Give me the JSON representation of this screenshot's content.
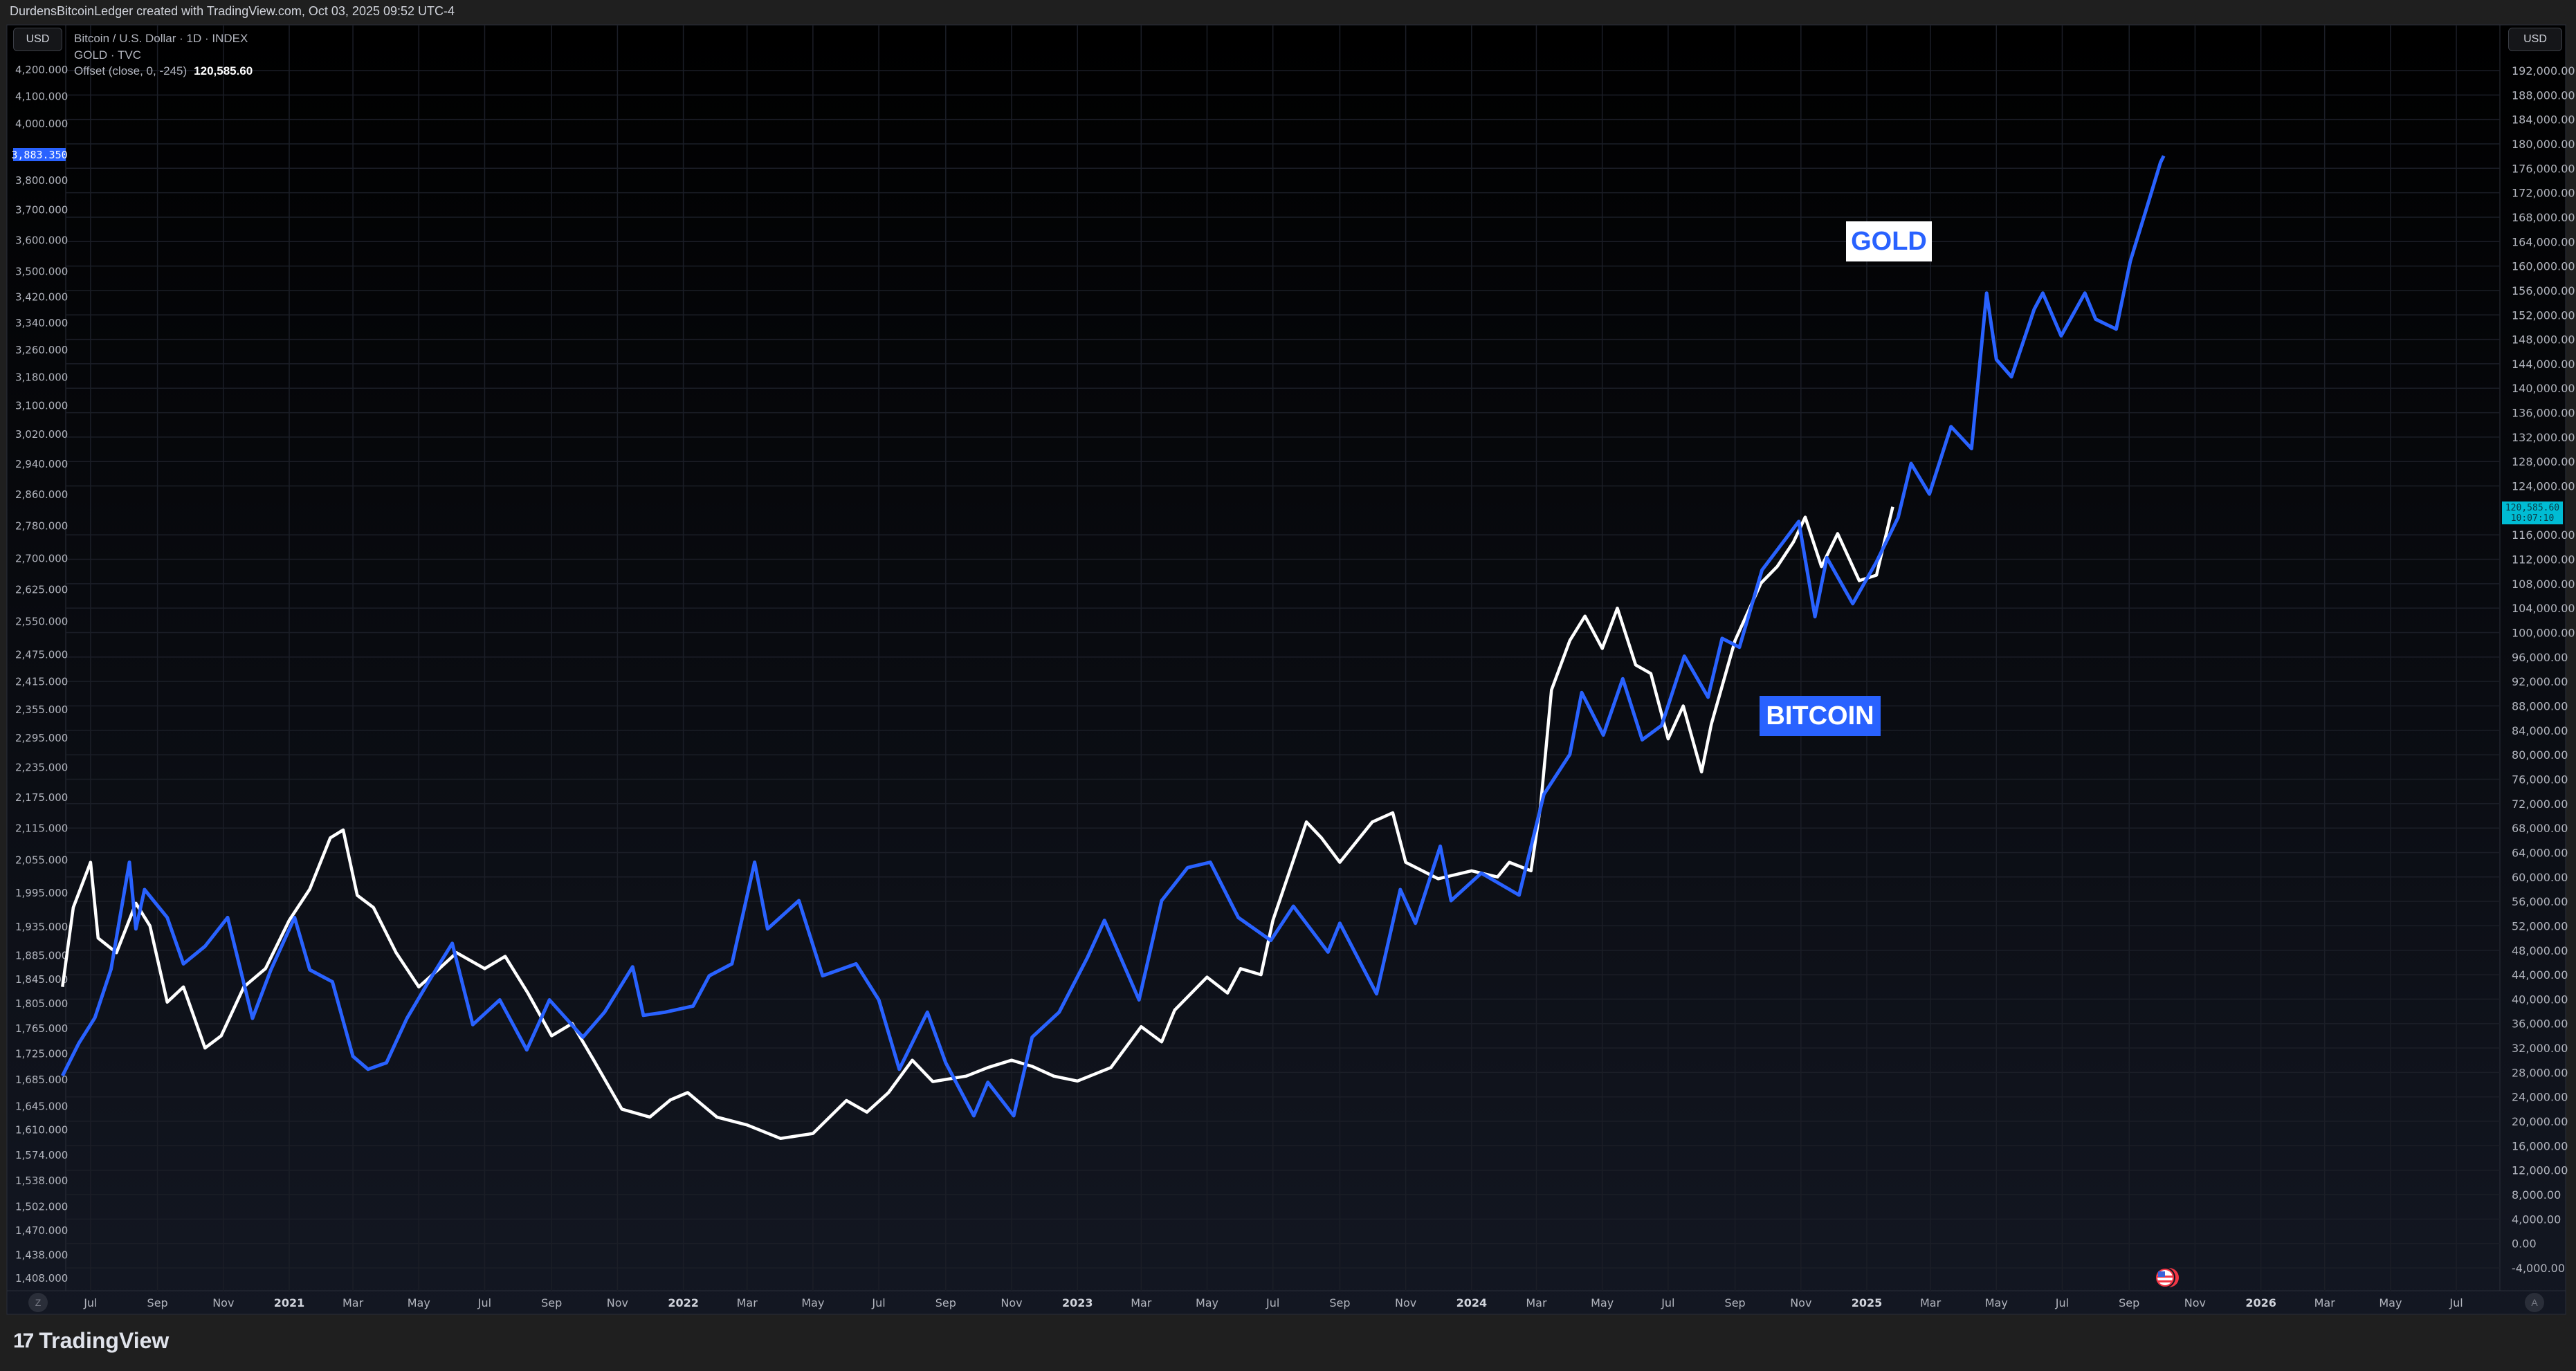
{
  "header": {
    "attribution": "DurdensBitcoinLedger created with TradingView.com, Oct 03, 2025 09:52 UTC-4"
  },
  "legend": {
    "line1": "Bitcoin / U.S. Dollar · 1D · INDEX",
    "line2": "GOLD · TVC",
    "line3_label": "Offset (close, 0, -245)",
    "line3_value": "120,585.60"
  },
  "axes": {
    "left_currency": "USD",
    "right_currency": "USD",
    "left_price_tag": "3,883.350",
    "right_price_tag": "120,585.60",
    "right_countdown": "10:07:10",
    "reset_button": "Z",
    "auto_button": "A"
  },
  "annotations": {
    "gold": "GOLD",
    "bitcoin": "BITCOIN"
  },
  "footer": {
    "brand": "TradingView",
    "logo_mark": "17"
  },
  "colors": {
    "gold_line": "#2962ff",
    "bitcoin_line": "#ffffff",
    "price_tag_right": "#00bcd4",
    "price_tag_left": "#2962ff",
    "background_top": "#000000",
    "background_bottom": "#131722"
  },
  "icons": {
    "event_flag": "us-flag-icon"
  },
  "chart_data": {
    "type": "line",
    "grid": true,
    "left_axis": {
      "scale": "log",
      "range": [
        1408,
        4200
      ],
      "ticks": [
        "4,200.000",
        "4,100.000",
        "4,000.000",
        "3,800.000",
        "3,700.000",
        "3,600.000",
        "3,500.000",
        "3,420.000",
        "3,340.000",
        "3,260.000",
        "3,180.000",
        "3,100.000",
        "3,020.000",
        "2,940.000",
        "2,860.000",
        "2,780.000",
        "2,700.000",
        "2,625.000",
        "2,550.000",
        "2,475.000",
        "2,415.000",
        "2,355.000",
        "2,295.000",
        "2,235.000",
        "2,175.000",
        "2,115.000",
        "2,055.000",
        "1,995.000",
        "1,935.000",
        "1,885.000",
        "1,845.000",
        "1,805.000",
        "1,765.000",
        "1,725.000",
        "1,685.000",
        "1,645.000",
        "1,610.000",
        "1,574.000",
        "1,538.000",
        "1,502.000",
        "1,470.000",
        "1,438.000",
        "1,408.000"
      ]
    },
    "right_axis": {
      "scale": "linear",
      "range": [
        -4000,
        192000
      ],
      "ticks": [
        "192,000.00",
        "188,000.00",
        "184,000.00",
        "180,000.00",
        "176,000.00",
        "172,000.00",
        "168,000.00",
        "164,000.00",
        "160,000.00",
        "156,000.00",
        "152,000.00",
        "148,000.00",
        "144,000.00",
        "140,000.00",
        "136,000.00",
        "132,000.00",
        "128,000.00",
        "124,000.00",
        "116,000.00",
        "112,000.00",
        "108,000.00",
        "104,000.00",
        "100,000.00",
        "96,000.00",
        "92,000.00",
        "88,000.00",
        "84,000.00",
        "80,000.00",
        "76,000.00",
        "72,000.00",
        "68,000.00",
        "64,000.00",
        "60,000.00",
        "56,000.00",
        "52,000.00",
        "48,000.00",
        "44,000.00",
        "40,000.00",
        "36,000.00",
        "32,000.00",
        "28,000.00",
        "24,000.00",
        "20,000.00",
        "16,000.00",
        "12,000.00",
        "8,000.00",
        "4,000.00",
        "0.00",
        "-4,000.00"
      ]
    },
    "x_ticks": [
      {
        "label": "Jul",
        "date": "2020-07-01"
      },
      {
        "label": "Sep",
        "date": "2020-09-01"
      },
      {
        "label": "Nov",
        "date": "2020-11-01"
      },
      {
        "label": "2021",
        "date": "2021-01-01"
      },
      {
        "label": "Mar",
        "date": "2021-03-01"
      },
      {
        "label": "May",
        "date": "2021-05-01"
      },
      {
        "label": "Jul",
        "date": "2021-07-01"
      },
      {
        "label": "Sep",
        "date": "2021-09-01"
      },
      {
        "label": "Nov",
        "date": "2021-11-01"
      },
      {
        "label": "2022",
        "date": "2022-01-01"
      },
      {
        "label": "Mar",
        "date": "2022-03-01"
      },
      {
        "label": "May",
        "date": "2022-05-01"
      },
      {
        "label": "Jul",
        "date": "2022-07-01"
      },
      {
        "label": "Sep",
        "date": "2022-09-01"
      },
      {
        "label": "Nov",
        "date": "2022-11-01"
      },
      {
        "label": "2023",
        "date": "2023-01-01"
      },
      {
        "label": "Mar",
        "date": "2023-03-01"
      },
      {
        "label": "May",
        "date": "2023-05-01"
      },
      {
        "label": "Jul",
        "date": "2023-07-01"
      },
      {
        "label": "Sep",
        "date": "2023-09-01"
      },
      {
        "label": "Nov",
        "date": "2023-11-01"
      },
      {
        "label": "2024",
        "date": "2024-01-01"
      },
      {
        "label": "Mar",
        "date": "2024-03-01"
      },
      {
        "label": "May",
        "date": "2024-05-01"
      },
      {
        "label": "Jul",
        "date": "2024-07-01"
      },
      {
        "label": "Sep",
        "date": "2024-09-01"
      },
      {
        "label": "Nov",
        "date": "2024-11-01"
      },
      {
        "label": "2025",
        "date": "2025-01-01"
      },
      {
        "label": "Mar",
        "date": "2025-03-01"
      },
      {
        "label": "May",
        "date": "2025-05-01"
      },
      {
        "label": "Jul",
        "date": "2025-07-01"
      },
      {
        "label": "Sep",
        "date": "2025-09-01"
      },
      {
        "label": "Nov",
        "date": "2025-11-01"
      },
      {
        "label": "2026",
        "date": "2026-01-01"
      },
      {
        "label": "Mar",
        "date": "2026-03-01"
      },
      {
        "label": "May",
        "date": "2026-05-01"
      },
      {
        "label": "Jul",
        "date": "2026-07-01"
      }
    ],
    "series": [
      {
        "name": "GOLD",
        "axis": "left",
        "points": [
          [
            "2020-06-05",
            1690
          ],
          [
            "2020-06-20",
            1740
          ],
          [
            "2020-07-05",
            1781
          ],
          [
            "2020-07-20",
            1861
          ],
          [
            "2020-08-06",
            2050
          ],
          [
            "2020-08-12",
            1930
          ],
          [
            "2020-08-20",
            2000
          ],
          [
            "2020-09-10",
            1950
          ],
          [
            "2020-09-25",
            1870
          ],
          [
            "2020-10-15",
            1900
          ],
          [
            "2020-11-05",
            1950
          ],
          [
            "2020-11-28",
            1780
          ],
          [
            "2020-12-15",
            1860
          ],
          [
            "2021-01-06",
            1950
          ],
          [
            "2021-01-20",
            1860
          ],
          [
            "2021-02-10",
            1840
          ],
          [
            "2021-03-01",
            1720
          ],
          [
            "2021-03-15",
            1700
          ],
          [
            "2021-04-01",
            1710
          ],
          [
            "2021-04-20",
            1780
          ],
          [
            "2021-05-10",
            1840
          ],
          [
            "2021-06-01",
            1905
          ],
          [
            "2021-06-20",
            1770
          ],
          [
            "2021-07-15",
            1810
          ],
          [
            "2021-08-09",
            1730
          ],
          [
            "2021-08-30",
            1810
          ],
          [
            "2021-09-30",
            1750
          ],
          [
            "2021-10-20",
            1790
          ],
          [
            "2021-11-15",
            1865
          ],
          [
            "2021-11-25",
            1785
          ],
          [
            "2021-12-15",
            1790
          ],
          [
            "2022-01-10",
            1800
          ],
          [
            "2022-01-25",
            1850
          ],
          [
            "2022-02-15",
            1870
          ],
          [
            "2022-03-08",
            2050
          ],
          [
            "2022-03-20",
            1930
          ],
          [
            "2022-04-18",
            1980
          ],
          [
            "2022-05-10",
            1850
          ],
          [
            "2022-06-10",
            1870
          ],
          [
            "2022-07-01",
            1810
          ],
          [
            "2022-07-20",
            1700
          ],
          [
            "2022-08-15",
            1790
          ],
          [
            "2022-09-01",
            1710
          ],
          [
            "2022-09-27",
            1630
          ],
          [
            "2022-10-10",
            1680
          ],
          [
            "2022-11-03",
            1630
          ],
          [
            "2022-11-20",
            1750
          ],
          [
            "2022-12-15",
            1790
          ],
          [
            "2023-01-10",
            1880
          ],
          [
            "2023-01-26",
            1945
          ],
          [
            "2023-02-27",
            1810
          ],
          [
            "2023-03-20",
            1980
          ],
          [
            "2023-04-13",
            2040
          ],
          [
            "2023-05-04",
            2050
          ],
          [
            "2023-05-30",
            1950
          ],
          [
            "2023-06-29",
            1910
          ],
          [
            "2023-07-20",
            1970
          ],
          [
            "2023-08-21",
            1890
          ],
          [
            "2023-09-01",
            1940
          ],
          [
            "2023-10-05",
            1820
          ],
          [
            "2023-10-27",
            2000
          ],
          [
            "2023-11-10",
            1940
          ],
          [
            "2023-12-03",
            2080
          ],
          [
            "2023-12-13",
            1980
          ],
          [
            "2024-01-10",
            2030
          ],
          [
            "2024-02-14",
            1990
          ],
          [
            "2024-03-08",
            2180
          ],
          [
            "2024-04-01",
            2260
          ],
          [
            "2024-04-12",
            2390
          ],
          [
            "2024-05-02",
            2300
          ],
          [
            "2024-05-20",
            2420
          ],
          [
            "2024-06-07",
            2290
          ],
          [
            "2024-06-25",
            2320
          ],
          [
            "2024-07-16",
            2470
          ],
          [
            "2024-08-07",
            2380
          ],
          [
            "2024-08-20",
            2510
          ],
          [
            "2024-09-05",
            2490
          ],
          [
            "2024-09-26",
            2670
          ],
          [
            "2024-10-30",
            2790
          ],
          [
            "2024-11-14",
            2560
          ],
          [
            "2024-11-25",
            2700
          ],
          [
            "2024-12-19",
            2590
          ],
          [
            "2025-01-10",
            2690
          ],
          [
            "2025-01-30",
            2800
          ],
          [
            "2025-02-11",
            2940
          ],
          [
            "2025-02-28",
            2860
          ],
          [
            "2025-03-20",
            3040
          ],
          [
            "2025-04-08",
            2980
          ],
          [
            "2025-04-22",
            3430
          ],
          [
            "2025-05-01",
            3230
          ],
          [
            "2025-05-15",
            3180
          ],
          [
            "2025-06-05",
            3380
          ],
          [
            "2025-06-13",
            3430
          ],
          [
            "2025-06-30",
            3300
          ],
          [
            "2025-07-22",
            3430
          ],
          [
            "2025-08-01",
            3350
          ],
          [
            "2025-08-20",
            3320
          ],
          [
            "2025-09-02",
            3530
          ],
          [
            "2025-09-16",
            3690
          ],
          [
            "2025-09-30",
            3860
          ],
          [
            "2025-10-03",
            3883.35
          ]
        ]
      },
      {
        "name": "Offset (close, 0, -245)",
        "axis": "right",
        "points": [
          [
            "2020-06-05",
            42000
          ],
          [
            "2020-06-15",
            55000
          ],
          [
            "2020-07-01",
            62400
          ],
          [
            "2020-07-08",
            50000
          ],
          [
            "2020-07-25",
            47600
          ],
          [
            "2020-08-12",
            55700
          ],
          [
            "2020-08-25",
            52000
          ],
          [
            "2020-09-10",
            39500
          ],
          [
            "2020-09-25",
            42000
          ],
          [
            "2020-10-15",
            32000
          ],
          [
            "2020-10-30",
            34000
          ],
          [
            "2020-11-20",
            42000
          ],
          [
            "2020-12-10",
            45000
          ],
          [
            "2021-01-01",
            52900
          ],
          [
            "2021-01-20",
            58000
          ],
          [
            "2021-02-08",
            66400
          ],
          [
            "2021-02-20",
            67700
          ],
          [
            "2021-03-05",
            57000
          ],
          [
            "2021-03-20",
            55000
          ],
          [
            "2021-04-10",
            47600
          ],
          [
            "2021-05-01",
            42000
          ],
          [
            "2021-05-20",
            45000
          ],
          [
            "2021-06-05",
            47600
          ],
          [
            "2021-07-01",
            45000
          ],
          [
            "2021-07-20",
            47000
          ],
          [
            "2021-08-10",
            41000
          ],
          [
            "2021-09-01",
            34000
          ],
          [
            "2021-09-20",
            36000
          ],
          [
            "2021-10-10",
            30000
          ],
          [
            "2021-11-05",
            22000
          ],
          [
            "2021-12-01",
            20700
          ],
          [
            "2021-12-20",
            23500
          ],
          [
            "2022-01-05",
            24700
          ],
          [
            "2022-02-01",
            20700
          ],
          [
            "2022-03-01",
            19400
          ],
          [
            "2022-04-01",
            17200
          ],
          [
            "2022-05-01",
            18000
          ],
          [
            "2022-06-01",
            23400
          ],
          [
            "2022-06-20",
            21500
          ],
          [
            "2022-07-10",
            24700
          ],
          [
            "2022-08-01",
            30000
          ],
          [
            "2022-08-20",
            26500
          ],
          [
            "2022-09-20",
            27400
          ],
          [
            "2022-10-10",
            28800
          ],
          [
            "2022-11-01",
            30000
          ],
          [
            "2022-11-20",
            29000
          ],
          [
            "2022-12-10",
            27400
          ],
          [
            "2023-01-01",
            26600
          ],
          [
            "2023-02-01",
            28800
          ],
          [
            "2023-03-01",
            35500
          ],
          [
            "2023-03-20",
            33000
          ],
          [
            "2023-04-01",
            38200
          ],
          [
            "2023-05-01",
            43600
          ],
          [
            "2023-05-20",
            41000
          ],
          [
            "2023-06-01",
            45000
          ],
          [
            "2023-06-20",
            44000
          ],
          [
            "2023-07-01",
            52900
          ],
          [
            "2023-08-01",
            69000
          ],
          [
            "2023-08-15",
            66400
          ],
          [
            "2023-09-01",
            62400
          ],
          [
            "2023-10-01",
            69000
          ],
          [
            "2023-10-20",
            70500
          ],
          [
            "2023-11-01",
            62400
          ],
          [
            "2023-12-01",
            59700
          ],
          [
            "2024-01-01",
            61000
          ],
          [
            "2024-01-25",
            60000
          ],
          [
            "2024-02-05",
            62400
          ],
          [
            "2024-02-25",
            61000
          ],
          [
            "2024-03-05",
            71800
          ],
          [
            "2024-03-15",
            90600
          ],
          [
            "2024-04-01",
            98700
          ],
          [
            "2024-04-15",
            102700
          ],
          [
            "2024-05-01",
            97400
          ],
          [
            "2024-05-15",
            104000
          ],
          [
            "2024-06-01",
            94700
          ],
          [
            "2024-06-15",
            93300
          ],
          [
            "2024-07-01",
            82600
          ],
          [
            "2024-07-15",
            88000
          ],
          [
            "2024-08-01",
            77200
          ],
          [
            "2024-08-10",
            85000
          ],
          [
            "2024-09-01",
            98700
          ],
          [
            "2024-09-25",
            108100
          ],
          [
            "2024-10-10",
            110800
          ],
          [
            "2024-10-25",
            114800
          ],
          [
            "2024-11-05",
            118900
          ],
          [
            "2024-11-20",
            110800
          ],
          [
            "2024-12-05",
            116200
          ],
          [
            "2024-12-25",
            108500
          ],
          [
            "2025-01-10",
            109400
          ],
          [
            "2025-01-25",
            120585.6
          ]
        ]
      }
    ]
  }
}
